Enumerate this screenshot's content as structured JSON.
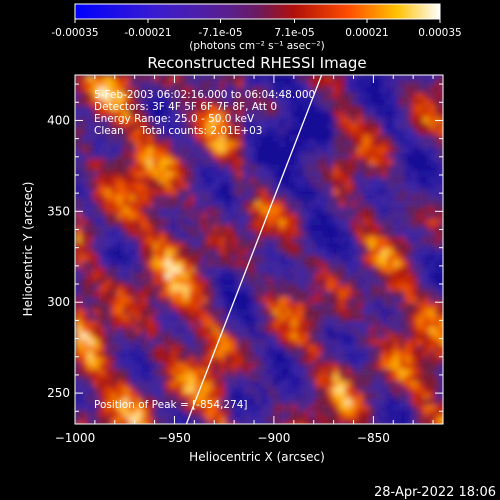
{
  "colorbar": {
    "tick_labels": [
      "-0.00035",
      "-0.00021",
      "-7.1e-05",
      "7.1e-05",
      "0.00021",
      "0.00035"
    ],
    "tick_values": [
      -0.00035,
      -0.00021,
      -7.1e-05,
      7.1e-05,
      0.00021,
      0.00035
    ],
    "range": [
      -0.00035,
      0.00035
    ],
    "unit_label": "(photons cm⁻² s⁻¹ asec⁻²)"
  },
  "plot": {
    "title": "Reconstructed RHESSI Image",
    "info_lines": [
      "5-Feb-2003 06:02:16.000 to 06:04:48.000",
      "Detectors: 3F 4F 5F 6F 7F 8F, Att 0",
      "Energy Range: 25.0 - 50.0 keV",
      "Clean     Total counts: 2.01E+03"
    ],
    "peak_label": "Position of Peak = [-854,274]"
  },
  "chart_data": {
    "type": "heatmap",
    "title": "Reconstructed RHESSI Image",
    "xlabel": "Heliocentric X (arcsec)",
    "ylabel": "Heliocentric Y (arcsec)",
    "xlim": [
      -1000,
      -815
    ],
    "ylim": [
      233,
      425
    ],
    "x_ticks": [
      -1000,
      -950,
      -900,
      -850
    ],
    "x_tick_labels": [
      "−1000",
      "−950",
      "−900",
      "−850"
    ],
    "y_ticks": [
      250,
      300,
      350,
      400
    ],
    "y_tick_labels": [
      "250",
      "300",
      "350",
      "400"
    ],
    "limb_line": [
      [
        -944,
        233
      ],
      [
        -876,
        425
      ]
    ],
    "peak_position": [
      -854,
      274
    ],
    "colormap": "rhessi-signed (blue-purple-red-orange-white)",
    "grid": false
  },
  "footer": {
    "timestamp": "28-Apr-2022 18:06"
  }
}
